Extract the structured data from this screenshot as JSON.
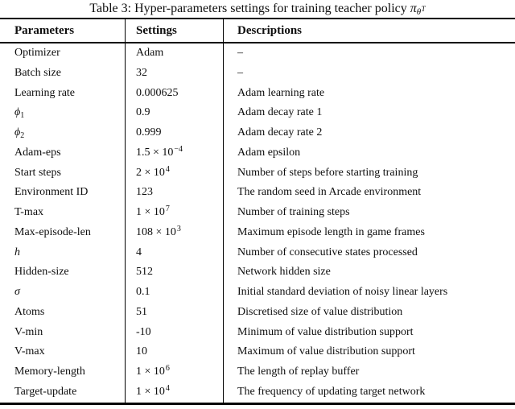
{
  "caption": {
    "prefix": "Table 3: Hyper-parameters settings for training teacher policy ",
    "pi": "π",
    "theta": "θ",
    "theta_sup": "T"
  },
  "header": {
    "parameters": "Parameters",
    "settings": "Settings",
    "descriptions": "Descriptions"
  },
  "rows": [
    {
      "param": "Optimizer",
      "param_sub": "",
      "param_italic": false,
      "setting": "Adam",
      "setting_sup": "",
      "desc": "–"
    },
    {
      "param": "Batch size",
      "param_sub": "",
      "param_italic": false,
      "setting": "32",
      "setting_sup": "",
      "desc": "–"
    },
    {
      "param": "Learning rate",
      "param_sub": "",
      "param_italic": false,
      "setting": "0.000625",
      "setting_sup": "",
      "desc": "Adam learning rate"
    },
    {
      "param": "ϕ",
      "param_sub": "1",
      "param_italic": true,
      "setting": "0.9",
      "setting_sup": "",
      "desc": "Adam decay rate 1"
    },
    {
      "param": "ϕ",
      "param_sub": "2",
      "param_italic": true,
      "setting": "0.999",
      "setting_sup": "",
      "desc": "Adam decay rate 2"
    },
    {
      "param": "Adam-eps",
      "param_sub": "",
      "param_italic": false,
      "setting": "1.5 × 10",
      "setting_sup": "−4",
      "desc": "Adam epsilon"
    },
    {
      "param": "Start steps",
      "param_sub": "",
      "param_italic": false,
      "setting": "2 × 10",
      "setting_sup": "4",
      "desc": "Number of steps before starting training"
    },
    {
      "param": "Environment ID",
      "param_sub": "",
      "param_italic": false,
      "setting": "123",
      "setting_sup": "",
      "desc": "The random seed in Arcade environment"
    },
    {
      "param": "T-max",
      "param_sub": "",
      "param_italic": false,
      "setting": "1 × 10",
      "setting_sup": "7",
      "desc": "Number of training steps"
    },
    {
      "param": "Max-episode-len",
      "param_sub": "",
      "param_italic": false,
      "setting": "108 × 10",
      "setting_sup": "3",
      "desc": "Maximum episode length in game frames"
    },
    {
      "param": "h",
      "param_sub": "",
      "param_italic": true,
      "setting": "4",
      "setting_sup": "",
      "desc": "Number of consecutive states processed"
    },
    {
      "param": "Hidden-size",
      "param_sub": "",
      "param_italic": false,
      "setting": "512",
      "setting_sup": "",
      "desc": "Network hidden size"
    },
    {
      "param": "σ",
      "param_sub": "",
      "param_italic": true,
      "setting": "0.1",
      "setting_sup": "",
      "desc": "Initial standard deviation of noisy linear layers"
    },
    {
      "param": "Atoms",
      "param_sub": "",
      "param_italic": false,
      "setting": "51",
      "setting_sup": "",
      "desc": "Discretised size of value distribution"
    },
    {
      "param": "V-min",
      "param_sub": "",
      "param_italic": false,
      "setting": "-10",
      "setting_sup": "",
      "desc": "Minimum of value distribution support"
    },
    {
      "param": "V-max",
      "param_sub": "",
      "param_italic": false,
      "setting": "10",
      "setting_sup": "",
      "desc": "Maximum of value distribution support"
    },
    {
      "param": "Memory-length",
      "param_sub": "",
      "param_italic": false,
      "setting": "1 × 10",
      "setting_sup": "6",
      "desc": "The length of replay buffer"
    },
    {
      "param": "Target-update",
      "param_sub": "",
      "param_italic": false,
      "setting": "1 × 10",
      "setting_sup": "4",
      "desc": "The frequency of updating target network"
    }
  ],
  "colors": {
    "background": "#ffffff",
    "text": "#0e0e0e",
    "rule": "#000000"
  }
}
